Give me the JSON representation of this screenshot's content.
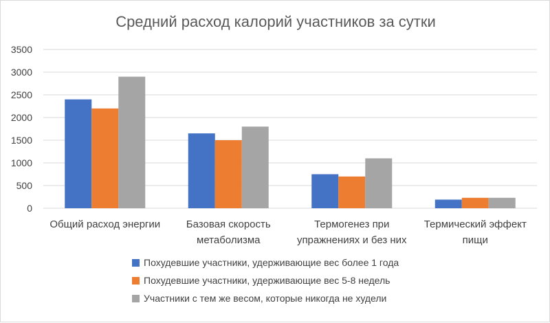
{
  "chart_data": {
    "type": "bar",
    "title": "Средний расход калорий участников за сутки",
    "categories": [
      [
        "Общий расход энергии"
      ],
      [
        "Базовая скорость",
        "метаболизма"
      ],
      [
        "Термогенез при",
        "упражнениях и без них"
      ],
      [
        "Термический эффект",
        "пищи"
      ]
    ],
    "series": [
      {
        "name": "Похудевшие участники, удерживающие вес более 1 года",
        "values": [
          2400,
          1650,
          750,
          190
        ],
        "color": "#4472C4"
      },
      {
        "name": "Похудевшие участники, удерживающие вес 5-8 недель",
        "values": [
          2200,
          1500,
          700,
          230
        ],
        "color": "#ED7D31"
      },
      {
        "name": "Участники с тем же весом, которые никогда не худели",
        "values": [
          2900,
          1800,
          1100,
          230
        ],
        "color": "#A5A5A5"
      }
    ],
    "ylim": [
      0,
      3500
    ],
    "yticks": [
      0,
      500,
      1000,
      1500,
      2000,
      2500,
      3000,
      3500
    ],
    "xlabel": "",
    "ylabel": "",
    "grid": true,
    "legend": "bottom"
  }
}
